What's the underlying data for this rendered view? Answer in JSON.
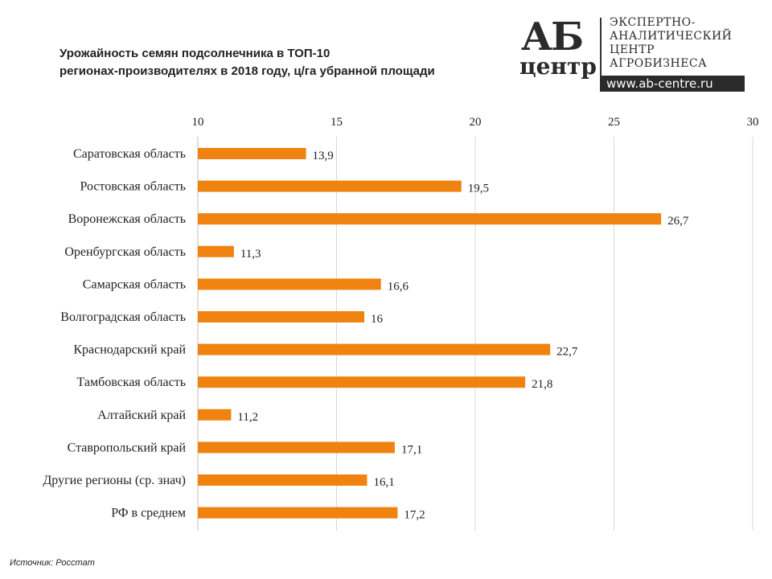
{
  "title_lines": [
    "Урожайность семян подсолнечника в ТОП-10",
    "регионах-производителях в 2018 году, ц/га убранной площади"
  ],
  "logo": {
    "mark_big": "АБ",
    "mark_small": "центр",
    "lines": [
      "ЭКСПЕРТНО-",
      "АНАЛИТИЧЕСКИЙ",
      "ЦЕНТР",
      "АГРОБИЗНЕСА"
    ],
    "url": "www.ab-centre.ru"
  },
  "source": "Источник:  Росстат",
  "colors": {
    "bar": "#F0820F",
    "grid": "#d9d9d9",
    "text": "#222222"
  },
  "chart_data": {
    "type": "bar",
    "orientation": "horizontal",
    "title": "Урожайность семян подсолнечника в ТОП-10 регионах-производителях в 2018 году, ц/га убранной площади",
    "categories": [
      "Саратовская область",
      "Ростовская область",
      "Воронежская область",
      "Оренбургская область",
      "Самарская область",
      "Волгоградская область",
      "Краснодарский край",
      "Тамбовская область",
      "Алтайский край",
      "Ставропольский край",
      "Другие регионы (ср. знач)",
      "РФ в среднем"
    ],
    "values": [
      13.9,
      19.5,
      26.7,
      11.3,
      16.6,
      16,
      22.7,
      21.8,
      11.2,
      17.1,
      16.1,
      17.2
    ],
    "labels": [
      "13,9",
      "19,5",
      "26,7",
      "11,3",
      "16,6",
      "16",
      "22,7",
      "21,8",
      "11,2",
      "17,1",
      "16,1",
      "17,2"
    ],
    "xlim": [
      10,
      30
    ],
    "xticks": [
      "10",
      "15",
      "20",
      "25",
      "30"
    ],
    "xtick_values": [
      10,
      15,
      20,
      25,
      30
    ],
    "x_axis_position": "top",
    "grid": true
  }
}
